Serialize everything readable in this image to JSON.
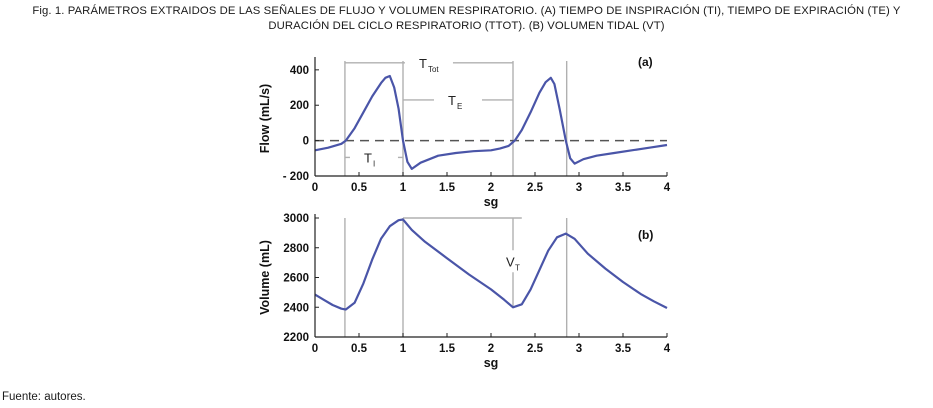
{
  "caption": {
    "label": "Fig. 1.",
    "line1": "PARÁMETROS EXTRAIDOS DE LAS SEÑALES DE FLUJO Y VOLUMEN RESPIRATORIO. (A) TIEMPO DE INSPIRACIÓN (TI), TIEMPO DE EXPIRACIÓN (TE) Y",
    "line2": "DURACIÓN DEL CICLO RESPIRATORIO (TTOT). (B) VOLUMEN TIDAL (VT)"
  },
  "source": "Fuente: autores.",
  "chart_data": [
    {
      "type": "line",
      "panel_tag": "(a)",
      "xlabel": "sg",
      "ylabel": "Flow (mL/s)",
      "xlim": [
        0,
        4
      ],
      "ylim": [
        -200,
        450
      ],
      "x_ticks": [
        "0",
        "0.5",
        "1",
        "1.5",
        "2",
        "2.5",
        "3",
        "3.5",
        "4"
      ],
      "y_ticks": [
        "400",
        "200",
        "0",
        "- 200"
      ],
      "y_tick_values": [
        400,
        200,
        0,
        -200
      ],
      "zero_line": "dashed",
      "series": [
        {
          "color": "#4a55a8",
          "x": [
            0,
            0.15,
            0.3,
            0.35,
            0.45,
            0.55,
            0.65,
            0.75,
            0.8,
            0.85,
            0.9,
            0.95,
            1.0,
            1.05,
            1.1,
            1.2,
            1.4,
            1.6,
            1.8,
            2.0,
            2.1,
            2.2,
            2.27,
            2.35,
            2.45,
            2.55,
            2.62,
            2.68,
            2.72,
            2.78,
            2.85,
            2.9,
            2.95,
            3.05,
            3.2,
            3.4,
            3.6,
            3.8,
            4.0
          ],
          "y": [
            -55,
            -40,
            -18,
            0,
            70,
            160,
            250,
            325,
            355,
            365,
            300,
            180,
            0,
            -120,
            -160,
            -125,
            -85,
            -70,
            -60,
            -55,
            -45,
            -30,
            0,
            60,
            160,
            270,
            330,
            355,
            320,
            180,
            0,
            -100,
            -130,
            -105,
            -85,
            -70,
            -55,
            -40,
            -25
          ]
        }
      ],
      "annotations": [
        {
          "text": "T",
          "sub": "Tot",
          "from_x": 0.34,
          "to_x": 2.25,
          "y": 440
        },
        {
          "text": "T",
          "sub": "E",
          "from_x": 1.0,
          "to_x": 2.25,
          "y": 230
        },
        {
          "text": "T",
          "sub": "I",
          "from_x": 0.34,
          "to_x": 1.0,
          "y": -95
        }
      ],
      "vlines_x": [
        0.34,
        1.0,
        2.25,
        2.86
      ]
    },
    {
      "type": "line",
      "panel_tag": "(b)",
      "xlabel": "sg",
      "ylabel": "Volume (mL)",
      "xlim": [
        0,
        4
      ],
      "ylim": [
        2200,
        3000
      ],
      "x_ticks": [
        "0",
        "0.5",
        "1",
        "1.5",
        "2",
        "2.5",
        "3",
        "3.5",
        "4"
      ],
      "y_ticks": [
        "3000",
        "2800",
        "2600",
        "2400",
        "2200"
      ],
      "y_tick_values": [
        3000,
        2800,
        2600,
        2400,
        2200
      ],
      "series": [
        {
          "color": "#4a55a8",
          "x": [
            0,
            0.1,
            0.2,
            0.3,
            0.35,
            0.45,
            0.55,
            0.65,
            0.75,
            0.85,
            0.95,
            1.0,
            1.1,
            1.25,
            1.5,
            1.75,
            2.0,
            2.15,
            2.25,
            2.35,
            2.45,
            2.55,
            2.65,
            2.75,
            2.85,
            2.95,
            3.1,
            3.3,
            3.5,
            3.7,
            3.85,
            4.0
          ],
          "y": [
            2485,
            2450,
            2415,
            2390,
            2385,
            2430,
            2560,
            2720,
            2860,
            2945,
            2985,
            2990,
            2920,
            2840,
            2730,
            2620,
            2520,
            2450,
            2400,
            2420,
            2520,
            2650,
            2780,
            2870,
            2895,
            2860,
            2760,
            2660,
            2570,
            2490,
            2440,
            2395
          ]
        }
      ],
      "annotations": [
        {
          "text": "V",
          "sub": "T",
          "x": 2.25,
          "from_y": 2405,
          "to_y": 3000
        }
      ],
      "vlines_x": [
        0.34,
        1.0,
        2.86
      ],
      "hline": {
        "from_x": 1.0,
        "to_x": 2.35,
        "y": 3000
      }
    }
  ]
}
